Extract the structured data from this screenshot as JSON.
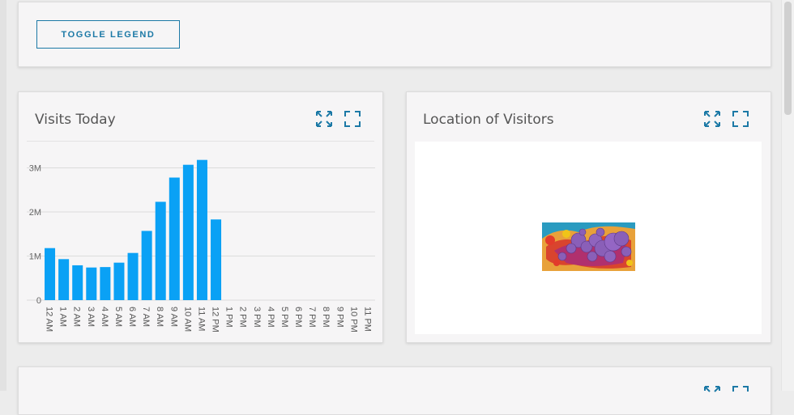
{
  "toolbar": {
    "toggle_legend_label": "TOGGLE LEGEND"
  },
  "visits_card": {
    "title": "Visits Today",
    "expand_icon": "expand-arrows-icon",
    "fullscreen_icon": "fullscreen-icon"
  },
  "location_card": {
    "title": "Location of Visitors",
    "expand_icon": "expand-arrows-icon",
    "fullscreen_icon": "fullscreen-icon"
  },
  "colors": {
    "accent": "#1c79a6",
    "bar": "#0aa1f5",
    "card_bg": "#f6f5f6",
    "page_bg": "#ececec"
  },
  "chart_data": {
    "type": "bar",
    "categories": [
      "12 AM",
      "1 AM",
      "2 AM",
      "3 AM",
      "4 AM",
      "5 AM",
      "6 AM",
      "7 AM",
      "8 AM",
      "9 AM",
      "10 AM",
      "11 AM",
      "12 PM",
      "1 PM",
      "2 PM",
      "3 PM",
      "4 PM",
      "5 PM",
      "6 PM",
      "7 PM",
      "8 PM",
      "9 PM",
      "10 PM",
      "11 PM"
    ],
    "values": [
      1.18,
      0.93,
      0.79,
      0.74,
      0.75,
      0.85,
      1.07,
      1.57,
      2.23,
      2.78,
      3.07,
      3.18,
      1.83,
      null,
      null,
      null,
      null,
      null,
      null,
      null,
      null,
      null,
      null,
      null
    ],
    "yticks": [
      "0",
      "1M",
      "2M",
      "3M"
    ],
    "ylim": [
      0,
      3.4
    ],
    "grid": true,
    "title": "",
    "xlabel": "",
    "ylabel": ""
  }
}
